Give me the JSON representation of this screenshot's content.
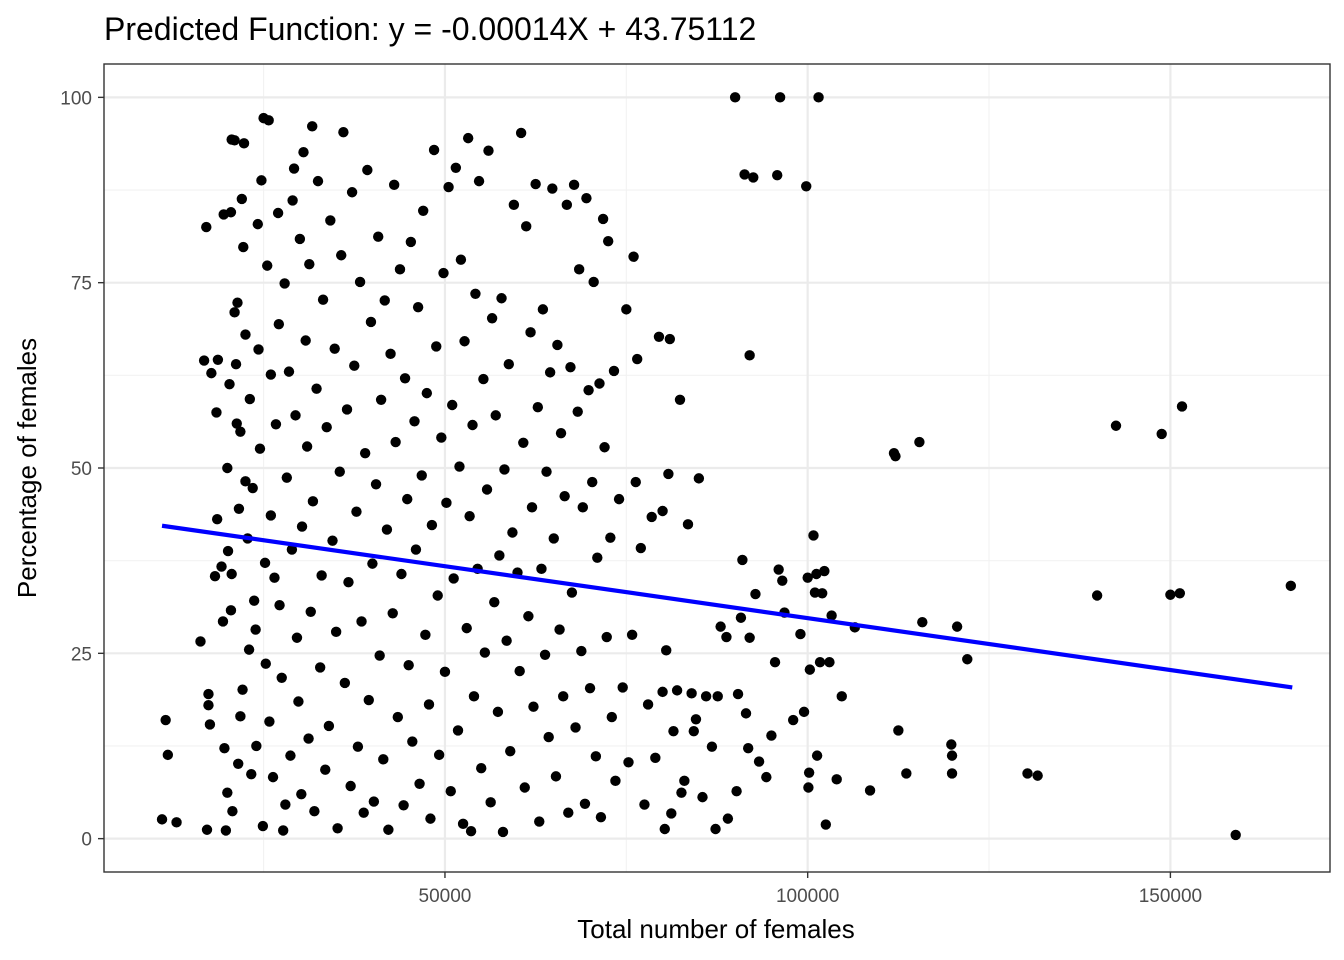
{
  "chart_data": {
    "type": "scatter",
    "title": "Predicted Function: y = -0.00014X + 43.75112",
    "xlabel": "Total number of females",
    "ylabel": "Percentage of females",
    "xlim": [
      3000,
      172000
    ],
    "ylim": [
      -4.5,
      104.5
    ],
    "x_ticks": [
      50000,
      100000,
      150000
    ],
    "x_tick_labels": [
      "50000",
      "100000",
      "150000"
    ],
    "y_ticks": [
      0,
      25,
      50,
      75,
      100
    ],
    "y_tick_labels": [
      "0",
      "25",
      "50",
      "75",
      "100"
    ],
    "grid": true,
    "point_color": "#000000",
    "regression_line": {
      "color": "#0000ff",
      "slope": -0.00014,
      "intercept": 43.75112,
      "x_range": [
        11000,
        166800
      ]
    },
    "points": [
      [
        11000,
        2.6
      ],
      [
        11500,
        16
      ],
      [
        11800,
        11.3
      ],
      [
        13000,
        2.2
      ],
      [
        16300,
        26.6
      ],
      [
        16800,
        64.5
      ],
      [
        17100,
        82.5
      ],
      [
        17200,
        1.2
      ],
      [
        17400,
        18
      ],
      [
        17400,
        19.5
      ],
      [
        17600,
        15.4
      ],
      [
        17800,
        62.8
      ],
      [
        18300,
        35.4
      ],
      [
        18500,
        57.5
      ],
      [
        18600,
        43.1
      ],
      [
        18700,
        64.6
      ],
      [
        19200,
        36.7
      ],
      [
        19400,
        29.3
      ],
      [
        19500,
        84.2
      ],
      [
        19600,
        12.2
      ],
      [
        19800,
        1.1
      ],
      [
        20000,
        6.2
      ],
      [
        20000,
        50
      ],
      [
        20100,
        38.8
      ],
      [
        20300,
        61.3
      ],
      [
        20500,
        30.8
      ],
      [
        20500,
        84.5
      ],
      [
        20600,
        35.7
      ],
      [
        20600,
        94.3
      ],
      [
        20700,
        3.7
      ],
      [
        21000,
        71
      ],
      [
        21000,
        94.2
      ],
      [
        21200,
        64
      ],
      [
        21300,
        56
      ],
      [
        21400,
        72.3
      ],
      [
        21500,
        10.1
      ],
      [
        21600,
        44.5
      ],
      [
        21800,
        16.5
      ],
      [
        21800,
        54.9
      ],
      [
        22000,
        86.3
      ],
      [
        22100,
        20.1
      ],
      [
        22200,
        79.8
      ],
      [
        22300,
        93.8
      ],
      [
        22500,
        68
      ],
      [
        22500,
        48.2
      ],
      [
        22800,
        40.5
      ],
      [
        23000,
        25.5
      ],
      [
        23100,
        59.3
      ],
      [
        23300,
        8.7
      ],
      [
        23500,
        47.3
      ],
      [
        23700,
        32.1
      ],
      [
        23900,
        28.2
      ],
      [
        24000,
        12.5
      ],
      [
        24200,
        82.9
      ],
      [
        24300,
        66
      ],
      [
        24500,
        52.6
      ],
      [
        24700,
        88.8
      ],
      [
        24900,
        1.7
      ],
      [
        25000,
        97.2
      ],
      [
        25200,
        37.2
      ],
      [
        25300,
        23.6
      ],
      [
        25500,
        77.3
      ],
      [
        25700,
        96.9
      ],
      [
        25800,
        15.8
      ],
      [
        26000,
        43.6
      ],
      [
        26000,
        62.6
      ],
      [
        26300,
        8.3
      ],
      [
        26500,
        35.2
      ],
      [
        26700,
        55.9
      ],
      [
        27000,
        84.4
      ],
      [
        27100,
        69.4
      ],
      [
        27200,
        31.5
      ],
      [
        27500,
        21.7
      ],
      [
        27700,
        1.1
      ],
      [
        27900,
        74.9
      ],
      [
        28000,
        4.6
      ],
      [
        28200,
        48.7
      ],
      [
        28500,
        63
      ],
      [
        28700,
        11.2
      ],
      [
        28900,
        39
      ],
      [
        29000,
        86.1
      ],
      [
        29200,
        90.4
      ],
      [
        29400,
        57.1
      ],
      [
        29600,
        27.1
      ],
      [
        29800,
        18.5
      ],
      [
        30000,
        80.9
      ],
      [
        30200,
        6
      ],
      [
        30300,
        42.1
      ],
      [
        30500,
        92.6
      ],
      [
        30800,
        67.2
      ],
      [
        31000,
        52.9
      ],
      [
        31200,
        13.5
      ],
      [
        31300,
        77.5
      ],
      [
        31500,
        30.6
      ],
      [
        31700,
        96.1
      ],
      [
        31800,
        45.5
      ],
      [
        32000,
        3.7
      ],
      [
        32300,
        60.7
      ],
      [
        32500,
        88.7
      ],
      [
        32800,
        23.1
      ],
      [
        33000,
        35.5
      ],
      [
        33200,
        72.7
      ],
      [
        33500,
        9.3
      ],
      [
        33700,
        55.5
      ],
      [
        34000,
        15.2
      ],
      [
        34200,
        83.4
      ],
      [
        34500,
        40.2
      ],
      [
        34800,
        66.1
      ],
      [
        35000,
        27.9
      ],
      [
        35200,
        1.4
      ],
      [
        35500,
        49.5
      ],
      [
        35700,
        78.7
      ],
      [
        36000,
        95.3
      ],
      [
        36200,
        21
      ],
      [
        36500,
        57.9
      ],
      [
        36700,
        34.6
      ],
      [
        37000,
        7.1
      ],
      [
        37200,
        87.2
      ],
      [
        37500,
        63.8
      ],
      [
        37800,
        44.1
      ],
      [
        38000,
        12.4
      ],
      [
        38300,
        75.1
      ],
      [
        38500,
        29.3
      ],
      [
        38800,
        3.5
      ],
      [
        39000,
        52
      ],
      [
        39300,
        90.2
      ],
      [
        39500,
        18.7
      ],
      [
        39800,
        69.7
      ],
      [
        40000,
        37.1
      ],
      [
        40200,
        5
      ],
      [
        40500,
        47.8
      ],
      [
        40800,
        81.2
      ],
      [
        41000,
        24.7
      ],
      [
        41200,
        59.2
      ],
      [
        41500,
        10.7
      ],
      [
        41700,
        72.6
      ],
      [
        42000,
        41.7
      ],
      [
        42200,
        1.2
      ],
      [
        42500,
        65.4
      ],
      [
        42800,
        30.4
      ],
      [
        43000,
        88.2
      ],
      [
        43200,
        53.5
      ],
      [
        43500,
        16.4
      ],
      [
        43800,
        76.8
      ],
      [
        44000,
        35.7
      ],
      [
        44300,
        4.5
      ],
      [
        44500,
        62.1
      ],
      [
        44800,
        45.8
      ],
      [
        45000,
        23.4
      ],
      [
        45300,
        80.5
      ],
      [
        45500,
        13.1
      ],
      [
        45800,
        56.3
      ],
      [
        46000,
        39
      ],
      [
        46300,
        71.7
      ],
      [
        46500,
        7.4
      ],
      [
        46800,
        49
      ],
      [
        47000,
        84.7
      ],
      [
        47300,
        27.5
      ],
      [
        47500,
        60.1
      ],
      [
        47800,
        18.1
      ],
      [
        48000,
        2.7
      ],
      [
        48200,
        42.3
      ],
      [
        48500,
        92.9
      ],
      [
        48800,
        66.4
      ],
      [
        49000,
        32.8
      ],
      [
        49200,
        11.3
      ],
      [
        49500,
        54.1
      ],
      [
        49800,
        76.3
      ],
      [
        50000,
        22.5
      ],
      [
        50200,
        45.3
      ],
      [
        50500,
        87.9
      ],
      [
        50800,
        6.4
      ],
      [
        51000,
        58.5
      ],
      [
        51200,
        35.1
      ],
      [
        51500,
        90.5
      ],
      [
        51800,
        14.6
      ],
      [
        52000,
        50.2
      ],
      [
        52200,
        78.1
      ],
      [
        52500,
        2
      ],
      [
        52700,
        67.1
      ],
      [
        53000,
        28.4
      ],
      [
        53200,
        94.5
      ],
      [
        53400,
        43.5
      ],
      [
        53600,
        1
      ],
      [
        53800,
        55.8
      ],
      [
        54000,
        19.2
      ],
      [
        54200,
        73.5
      ],
      [
        54500,
        36.4
      ],
      [
        54700,
        88.7
      ],
      [
        55000,
        9.5
      ],
      [
        55300,
        62
      ],
      [
        55500,
        25.1
      ],
      [
        55800,
        47.1
      ],
      [
        56000,
        92.8
      ],
      [
        56300,
        4.9
      ],
      [
        56500,
        70.2
      ],
      [
        56800,
        31.9
      ],
      [
        57000,
        57.1
      ],
      [
        57300,
        17.1
      ],
      [
        57500,
        38.2
      ],
      [
        57800,
        72.9
      ],
      [
        58000,
        0.9
      ],
      [
        58200,
        49.8
      ],
      [
        58500,
        26.7
      ],
      [
        58800,
        64
      ],
      [
        59000,
        11.8
      ],
      [
        59300,
        41.3
      ],
      [
        59500,
        85.5
      ],
      [
        60000,
        35.9
      ],
      [
        60300,
        22.6
      ],
      [
        60500,
        95.2
      ],
      [
        60800,
        53.4
      ],
      [
        61000,
        6.9
      ],
      [
        61200,
        82.6
      ],
      [
        61500,
        30
      ],
      [
        61800,
        68.3
      ],
      [
        62000,
        44.7
      ],
      [
        62200,
        17.8
      ],
      [
        62500,
        88.3
      ],
      [
        62800,
        58.2
      ],
      [
        63000,
        2.3
      ],
      [
        63300,
        36.4
      ],
      [
        63500,
        71.4
      ],
      [
        63800,
        24.8
      ],
      [
        64000,
        49.5
      ],
      [
        64300,
        13.7
      ],
      [
        64500,
        62.9
      ],
      [
        64800,
        87.7
      ],
      [
        65000,
        40.5
      ],
      [
        65300,
        8.4
      ],
      [
        65500,
        66.6
      ],
      [
        65800,
        28.2
      ],
      [
        66000,
        54.7
      ],
      [
        66300,
        19.2
      ],
      [
        66500,
        46.2
      ],
      [
        66800,
        85.5
      ],
      [
        67000,
        3.5
      ],
      [
        67300,
        63.6
      ],
      [
        67500,
        33.2
      ],
      [
        67800,
        88.2
      ],
      [
        68000,
        15
      ],
      [
        68300,
        57.6
      ],
      [
        68500,
        76.8
      ],
      [
        68800,
        25.3
      ],
      [
        69000,
        44.7
      ],
      [
        69300,
        4.7
      ],
      [
        69500,
        86.4
      ],
      [
        69800,
        60.5
      ],
      [
        70000,
        20.3
      ],
      [
        70300,
        48.1
      ],
      [
        70500,
        75.1
      ],
      [
        70800,
        11.1
      ],
      [
        71000,
        37.9
      ],
      [
        71300,
        61.4
      ],
      [
        71500,
        2.9
      ],
      [
        71800,
        83.6
      ],
      [
        72000,
        52.8
      ],
      [
        72300,
        27.2
      ],
      [
        72500,
        80.6
      ],
      [
        72800,
        40.6
      ],
      [
        73000,
        16.4
      ],
      [
        73300,
        63.1
      ],
      [
        73500,
        7.8
      ],
      [
        74000,
        45.8
      ],
      [
        74500,
        20.4
      ],
      [
        75000,
        71.4
      ],
      [
        75300,
        10.3
      ],
      [
        75800,
        27.5
      ],
      [
        76000,
        78.5
      ],
      [
        76300,
        48.1
      ],
      [
        76500,
        64.7
      ],
      [
        77000,
        39.2
      ],
      [
        77500,
        4.6
      ],
      [
        78000,
        18.1
      ],
      [
        78500,
        43.4
      ],
      [
        79000,
        10.9
      ],
      [
        79500,
        67.7
      ],
      [
        80000,
        44.2
      ],
      [
        80000,
        19.8
      ],
      [
        80300,
        1.3
      ],
      [
        80500,
        25.4
      ],
      [
        80800,
        49.2
      ],
      [
        81000,
        67.4
      ],
      [
        81200,
        3.4
      ],
      [
        81500,
        14.5
      ],
      [
        82000,
        20
      ],
      [
        82400,
        59.2
      ],
      [
        82600,
        6.2
      ],
      [
        83000,
        7.8
      ],
      [
        83500,
        42.4
      ],
      [
        84000,
        19.6
      ],
      [
        84300,
        14.5
      ],
      [
        84600,
        16.1
      ],
      [
        85000,
        48.6
      ],
      [
        85500,
        5.6
      ],
      [
        86000,
        19.2
      ],
      [
        86800,
        12.4
      ],
      [
        87300,
        1.3
      ],
      [
        87600,
        19.2
      ],
      [
        88000,
        28.6
      ],
      [
        88800,
        27.2
      ],
      [
        89000,
        2.7
      ],
      [
        90000,
        100
      ],
      [
        90200,
        6.4
      ],
      [
        90400,
        19.5
      ],
      [
        90800,
        29.8
      ],
      [
        91000,
        37.6
      ],
      [
        91300,
        89.6
      ],
      [
        91500,
        16.9
      ],
      [
        91800,
        12.2
      ],
      [
        92000,
        65.2
      ],
      [
        92000,
        27.1
      ],
      [
        92500,
        89.2
      ],
      [
        92800,
        33
      ],
      [
        93300,
        10.4
      ],
      [
        94300,
        8.3
      ],
      [
        95000,
        13.9
      ],
      [
        95500,
        23.8
      ],
      [
        95800,
        89.5
      ],
      [
        96000,
        36.3
      ],
      [
        96200,
        100
      ],
      [
        96500,
        34.8
      ],
      [
        96800,
        30.5
      ],
      [
        98000,
        16
      ],
      [
        99000,
        27.6
      ],
      [
        99500,
        17.1
      ],
      [
        99800,
        88
      ],
      [
        100000,
        35.2
      ],
      [
        100100,
        6.9
      ],
      [
        100200,
        8.9
      ],
      [
        100300,
        22.8
      ],
      [
        100800,
        40.9
      ],
      [
        101000,
        33.2
      ],
      [
        101200,
        35.7
      ],
      [
        101300,
        11.2
      ],
      [
        101500,
        100
      ],
      [
        101700,
        23.8
      ],
      [
        102000,
        33.1
      ],
      [
        102300,
        36.1
      ],
      [
        102500,
        1.9
      ],
      [
        103000,
        23.8
      ],
      [
        103300,
        30.1
      ],
      [
        104000,
        8
      ],
      [
        104700,
        19.2
      ],
      [
        106500,
        28.5
      ],
      [
        108600,
        6.5
      ],
      [
        111900,
        52
      ],
      [
        112100,
        51.6
      ],
      [
        112500,
        14.6
      ],
      [
        113600,
        8.8
      ],
      [
        115400,
        53.5
      ],
      [
        115800,
        29.2
      ],
      [
        119800,
        12.7
      ],
      [
        119900,
        11.2
      ],
      [
        119900,
        8.8
      ],
      [
        120600,
        28.6
      ],
      [
        122000,
        24.2
      ],
      [
        130300,
        8.8
      ],
      [
        131700,
        8.5
      ],
      [
        139900,
        32.8
      ],
      [
        142500,
        55.7
      ],
      [
        148800,
        54.6
      ],
      [
        150000,
        32.9
      ],
      [
        151300,
        33.1
      ],
      [
        151600,
        58.3
      ],
      [
        159000,
        0.5
      ],
      [
        166600,
        34.1
      ]
    ]
  }
}
